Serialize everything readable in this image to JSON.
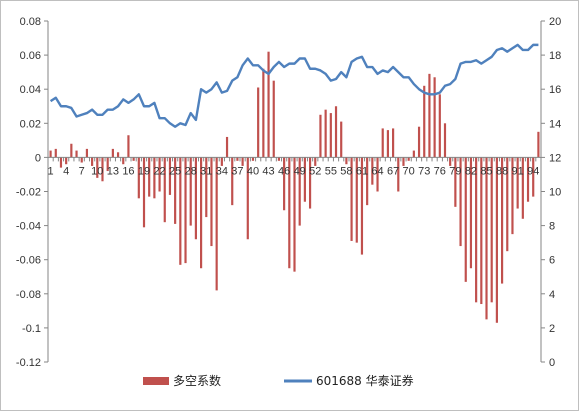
{
  "chart_data": {
    "type": "bar+line",
    "title": "",
    "xlabel": "",
    "categories": [
      1,
      2,
      3,
      4,
      5,
      6,
      7,
      8,
      9,
      10,
      11,
      12,
      13,
      14,
      15,
      16,
      17,
      18,
      19,
      20,
      21,
      22,
      23,
      24,
      25,
      26,
      27,
      28,
      29,
      30,
      31,
      32,
      33,
      34,
      35,
      36,
      37,
      38,
      39,
      40,
      41,
      42,
      43,
      44,
      45,
      46,
      47,
      48,
      49,
      50,
      51,
      52,
      53,
      54,
      55,
      56,
      57,
      58,
      59,
      60,
      61,
      62,
      63,
      64,
      65,
      66,
      67,
      68,
      69,
      70,
      71,
      72,
      73,
      74,
      75,
      76,
      77,
      78,
      79,
      80,
      81,
      82,
      83,
      84,
      85,
      86,
      87,
      88,
      89,
      90,
      91,
      92,
      93,
      94,
      95
    ],
    "x_tick_labels": [
      "1",
      "4",
      "7",
      "10",
      "13",
      "16",
      "19",
      "22",
      "25",
      "28",
      "31",
      "34",
      "37",
      "40",
      "43",
      "46",
      "49",
      "52",
      "55",
      "58",
      "61",
      "64",
      "67",
      "70",
      "73",
      "76",
      "79",
      "82",
      "85",
      "88",
      "91",
      "94"
    ],
    "y_left": {
      "min": -0.12,
      "max": 0.08,
      "ticks": [
        "-0.12",
        "-0.1",
        "-0.08",
        "-0.06",
        "-0.04",
        "-0.02",
        "0",
        "0.02",
        "0.04",
        "0.06",
        "0.08"
      ]
    },
    "y_right": {
      "min": 0,
      "max": 20,
      "ticks": [
        "0",
        "2",
        "4",
        "6",
        "8",
        "10",
        "12",
        "14",
        "16",
        "18",
        "20"
      ]
    },
    "grid": false,
    "legend_position": "bottom",
    "series": [
      {
        "name": "多空系数",
        "kind": "bar",
        "axis": "left",
        "color": "#c0504d",
        "values": [
          0.004,
          0.005,
          -0.006,
          -0.004,
          0.008,
          0.004,
          -0.003,
          0.005,
          -0.005,
          -0.012,
          -0.014,
          -0.008,
          0.005,
          0.003,
          -0.004,
          0.013,
          -0.002,
          -0.024,
          -0.041,
          -0.023,
          -0.024,
          -0.02,
          -0.038,
          -0.022,
          -0.039,
          -0.063,
          -0.062,
          -0.04,
          -0.048,
          -0.065,
          -0.035,
          -0.052,
          -0.078,
          -0.005,
          0.012,
          -0.028,
          -0.002,
          -0.005,
          -0.048,
          -0.002,
          0.041,
          0.052,
          0.062,
          0.045,
          -0.002,
          -0.031,
          -0.065,
          -0.067,
          -0.04,
          -0.026,
          -0.03,
          -0.005,
          0.025,
          0.028,
          0.026,
          0.03,
          0.021,
          -0.004,
          -0.049,
          -0.05,
          -0.057,
          -0.028,
          -0.016,
          -0.02,
          0.017,
          0.016,
          0.017,
          -0.02,
          -0.005,
          -0.002,
          0.004,
          0.018,
          0.042,
          0.049,
          0.047,
          0.037,
          0.02,
          -0.005,
          -0.029,
          -0.052,
          -0.073,
          -0.065,
          -0.085,
          -0.086,
          -0.095,
          -0.085,
          -0.097,
          -0.074,
          -0.055,
          -0.045,
          -0.03,
          -0.036,
          -0.026,
          -0.023,
          0.015
        ]
      },
      {
        "name": "601688 华泰证券",
        "kind": "line",
        "axis": "right",
        "color": "#4f81bd",
        "values": [
          15.3,
          15.5,
          15.0,
          15.0,
          14.9,
          14.4,
          14.5,
          14.6,
          14.8,
          14.5,
          14.5,
          14.8,
          14.8,
          15.0,
          15.4,
          15.2,
          15.4,
          15.7,
          15.0,
          15.0,
          15.2,
          14.3,
          14.3,
          14.0,
          13.8,
          14.0,
          13.9,
          14.6,
          14.2,
          16.0,
          15.8,
          16.0,
          16.4,
          15.8,
          15.9,
          16.5,
          16.7,
          17.4,
          17.8,
          17.4,
          17.4,
          17.1,
          16.9,
          17.3,
          17.6,
          17.3,
          17.5,
          17.5,
          17.8,
          17.8,
          17.2,
          17.2,
          17.1,
          16.9,
          16.5,
          16.6,
          17.0,
          16.7,
          17.6,
          17.8,
          17.9,
          17.3,
          17.3,
          16.9,
          17.1,
          17.0,
          17.3,
          17.0,
          16.7,
          16.7,
          16.3,
          16.0,
          15.8,
          15.7,
          15.7,
          15.8,
          16.2,
          16.3,
          16.6,
          17.5,
          17.6,
          17.6,
          17.7,
          17.5,
          17.7,
          17.9,
          18.3,
          18.4,
          18.2,
          18.4,
          18.6,
          18.3,
          18.3,
          18.6,
          18.6
        ]
      }
    ]
  }
}
